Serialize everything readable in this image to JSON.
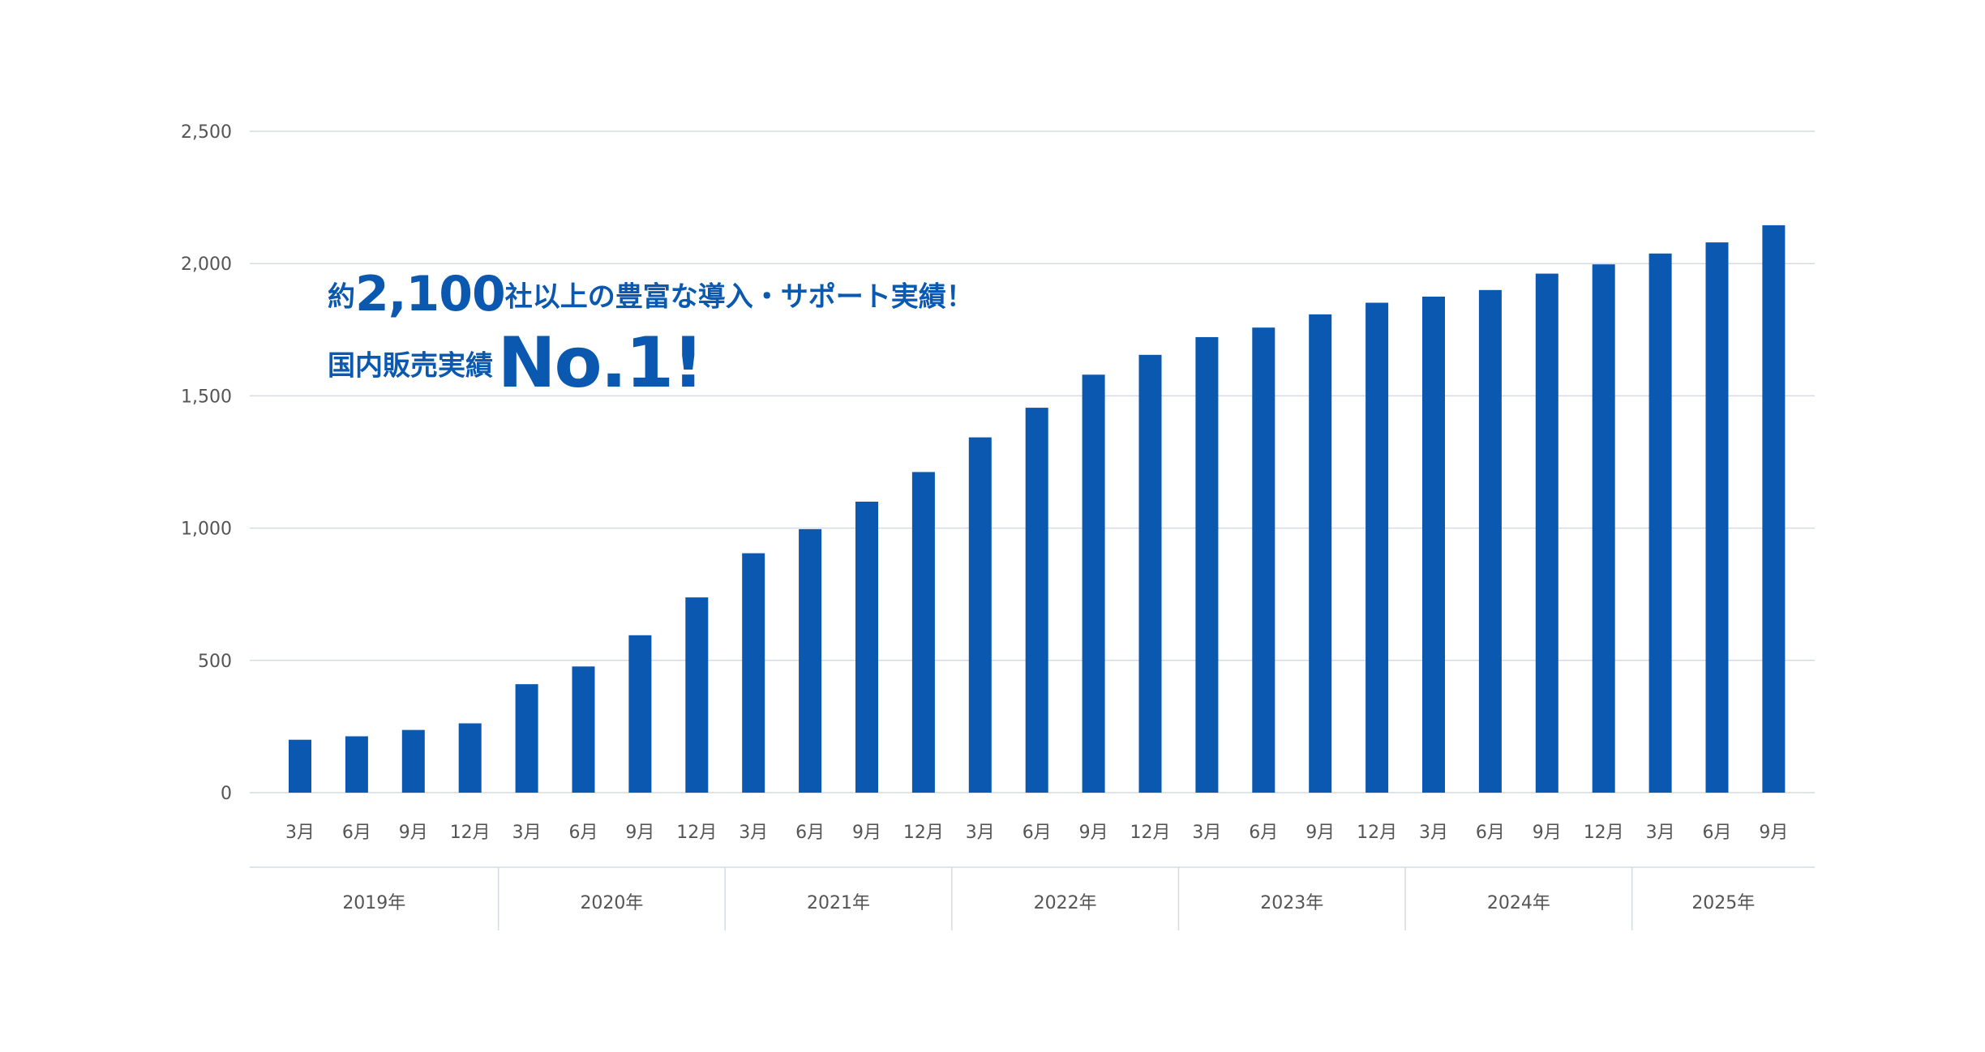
{
  "headline": {
    "line1_prefix": "約",
    "line1_number": "2,100",
    "line1_suffix": "社以上の豊富な導入・サポート実績！",
    "line2_prefix": "国内販売実績",
    "line2_big": "No.1!"
  },
  "colors": {
    "bar": "#0a58b0",
    "grid": "#d6dbe3",
    "text": "#555555"
  },
  "chart_data": {
    "type": "bar",
    "ylim": [
      0,
      2500
    ],
    "yticks": [
      0,
      500,
      1000,
      1500,
      2000,
      2500
    ],
    "ytick_labels": [
      "0",
      "500",
      "1,000",
      "1,500",
      "2,000",
      "2,500"
    ],
    "grid": true,
    "categories": [
      "3月",
      "6月",
      "9月",
      "12月",
      "3月",
      "6月",
      "9月",
      "12月",
      "3月",
      "6月",
      "9月",
      "12月",
      "3月",
      "6月",
      "9月",
      "12月",
      "3月",
      "6月",
      "9月",
      "12月",
      "3月",
      "6月",
      "9月",
      "12月",
      "3月",
      "6月",
      "9月"
    ],
    "values": [
      200,
      213,
      237,
      262,
      410,
      477,
      595,
      738,
      905,
      996,
      1100,
      1212,
      1343,
      1455,
      1580,
      1655,
      1722,
      1758,
      1808,
      1852,
      1875,
      1900,
      1962,
      1997,
      2038,
      2080,
      2145
    ],
    "groups": [
      {
        "label": "2019年",
        "count": 4
      },
      {
        "label": "2020年",
        "count": 4
      },
      {
        "label": "2021年",
        "count": 4
      },
      {
        "label": "2022年",
        "count": 4
      },
      {
        "label": "2023年",
        "count": 4
      },
      {
        "label": "2024年",
        "count": 4
      },
      {
        "label": "2025年",
        "count": 3
      }
    ]
  }
}
